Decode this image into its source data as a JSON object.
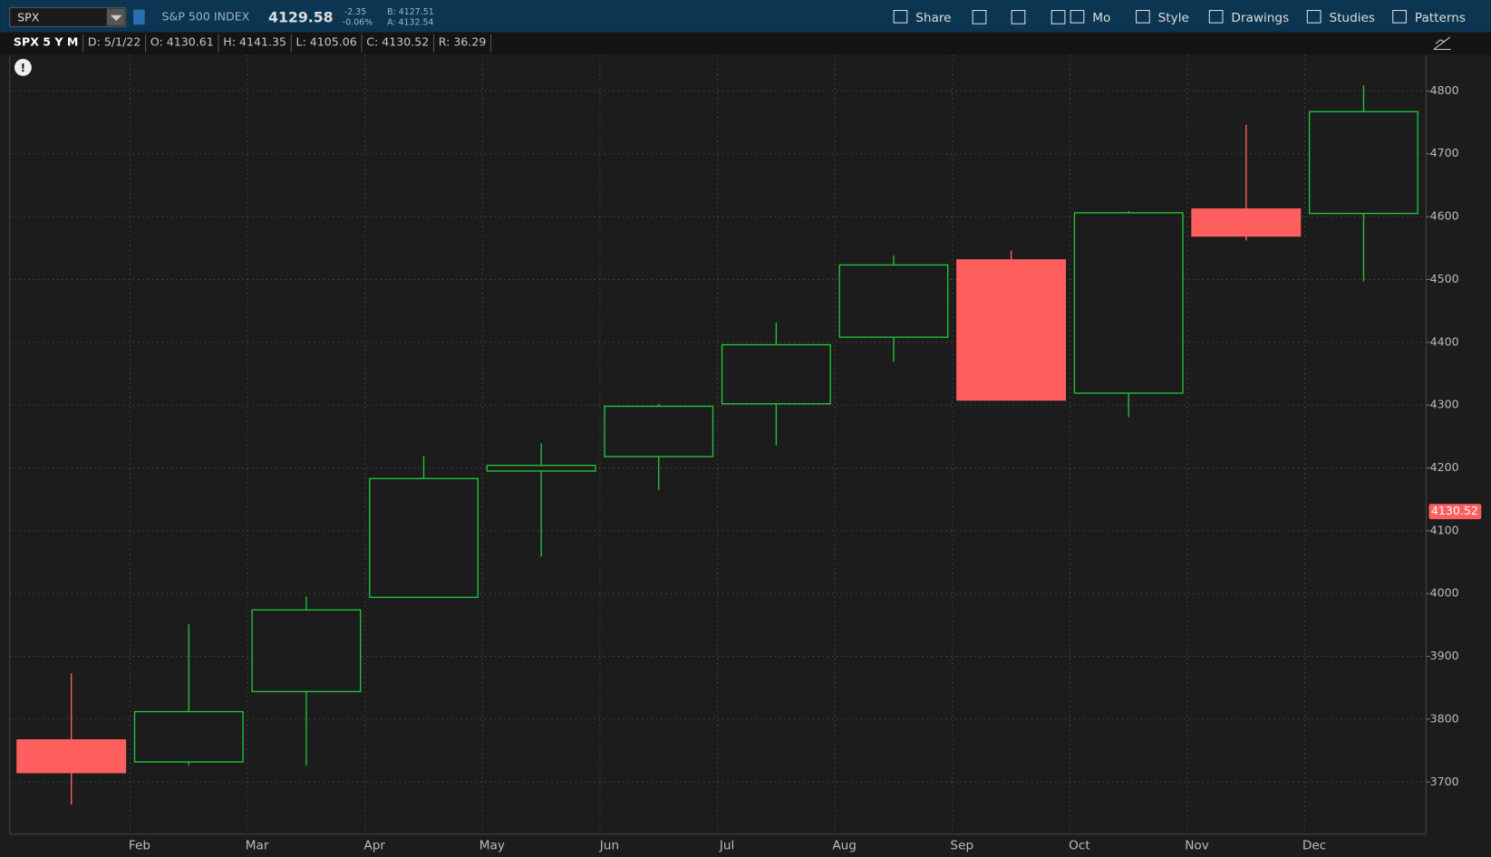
{
  "header": {
    "symbol": "SPX",
    "description": "S&P 500 INDEX",
    "last": "4129.58",
    "change": "-2.35",
    "change_pct": "-0.06%",
    "bid": "B: 4127.51",
    "ask": "A: 4132.54",
    "buttons": [
      "Share",
      "Mo",
      "Style",
      "Drawings",
      "Studies",
      "Patterns"
    ]
  },
  "info_bar": [
    "SPX 5 Y M",
    "D: 5/1/22",
    "O: 4130.61",
    "H: 4141.35",
    "L: 4105.06",
    "C: 4130.52",
    "R: 36.29"
  ],
  "chart_data": {
    "type": "candlestick",
    "categories": [
      null,
      "Feb",
      "Mar",
      "Apr",
      "May",
      "Jun",
      "Jul",
      "Aug",
      "Sep",
      "Oct",
      "Nov",
      "Dec"
    ],
    "open": [
      3767,
      3732,
      3844,
      3994,
      4195,
      4218,
      4302,
      4408,
      4531,
      4319,
      4612,
      4605
    ],
    "high": [
      3873,
      3951,
      3995,
      4219,
      4239,
      4302,
      4431,
      4538,
      4546,
      4609,
      4746,
      4809
    ],
    "low": [
      3664,
      3727,
      3726,
      3994,
      4059,
      4165,
      4236,
      4369,
      4308,
      4281,
      4562,
      4497
    ],
    "close": [
      3715,
      3812,
      3974,
      4183,
      4204,
      4298,
      4396,
      4523,
      4308,
      4606,
      4569,
      4767
    ],
    "ylim": [
      3617,
      4857
    ],
    "yticks": [
      3700,
      3800,
      3900,
      4000,
      4100,
      4200,
      4300,
      4400,
      4500,
      4600,
      4700,
      4800
    ],
    "last_price": 4130.52,
    "up_color": "#22c33a",
    "down_color": "#ff5f5f",
    "grid": true
  }
}
